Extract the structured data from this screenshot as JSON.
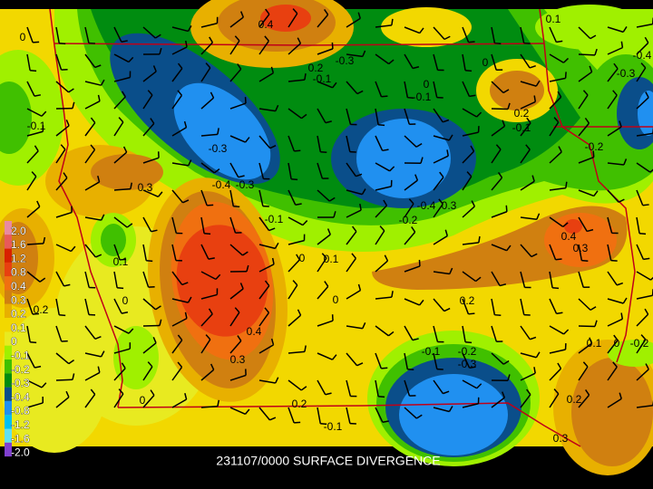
{
  "title": "231107/0000 SURFACE DIVERGENCE",
  "legend": {
    "items": [
      {
        "label": "2.0",
        "color": "#e88aa0"
      },
      {
        "label": "1.6",
        "color": "#e85a5a"
      },
      {
        "label": "1.2",
        "color": "#d82000"
      },
      {
        "label": "0.8",
        "color": "#e84010"
      },
      {
        "label": "0.4",
        "color": "#f07010"
      },
      {
        "label": "0.3",
        "color": "#d08010"
      },
      {
        "label": "0.2",
        "color": "#e8b000"
      },
      {
        "label": "0.1",
        "color": "#f2d800"
      },
      {
        "label": "0",
        "color": "#e8ea20"
      },
      {
        "label": "-0.1",
        "color": "#a0f000"
      },
      {
        "label": "-0.2",
        "color": "#40c000"
      },
      {
        "label": "-0.3",
        "color": "#008c10"
      },
      {
        "label": "-0.4",
        "color": "#0a4e8a"
      },
      {
        "label": "-0.8",
        "color": "#2090f0"
      },
      {
        "label": "-1.2",
        "color": "#00c0f0"
      },
      {
        "label": "-1.6",
        "color": "#60e0f0"
      },
      {
        "label": "-2.0",
        "color": "#8040d0"
      }
    ]
  },
  "contour_labels": [
    "0.4",
    "-0.3",
    "0.2",
    "-0.1",
    "0",
    "-0.1",
    "0",
    "0.1",
    "-0.4",
    "-0.3",
    "0.2",
    "-0.1",
    "-0.2",
    "-0.1",
    "0",
    "-0.3",
    "-0.4",
    "-0.3",
    "0.3",
    "-0.1",
    "-0.2",
    "-0.4",
    "0.3",
    "0.4",
    "0.3",
    "0.1",
    "0",
    "0.1",
    "0",
    "0.2",
    "0.2",
    "0",
    "0.4",
    "0.3",
    "-0.1",
    "-0.2",
    "-0.3",
    "0.1",
    "0",
    "-0.2",
    "0",
    "0.2",
    "-0.1",
    "0.2",
    "0.3"
  ]
}
